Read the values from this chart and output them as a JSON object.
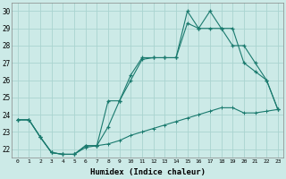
{
  "xlabel": "Humidex (Indice chaleur)",
  "bg_color": "#cceae7",
  "grid_color": "#aad4d0",
  "line_color": "#1a7a6e",
  "x_ticks": [
    0,
    1,
    2,
    3,
    4,
    5,
    6,
    7,
    8,
    9,
    10,
    11,
    12,
    13,
    14,
    15,
    16,
    17,
    18,
    19,
    20,
    21,
    22,
    23
  ],
  "y_ticks": [
    22,
    23,
    24,
    25,
    26,
    27,
    28,
    29,
    30
  ],
  "xlim": [
    -0.5,
    23.5
  ],
  "ylim": [
    21.5,
    30.5
  ],
  "line1_x": [
    0,
    1,
    2,
    3,
    4,
    5,
    6,
    7,
    8,
    9,
    10,
    11,
    12,
    13,
    14,
    15,
    16,
    17,
    18,
    19,
    20,
    21,
    22,
    23
  ],
  "line1_y": [
    23.7,
    23.7,
    22.7,
    21.8,
    21.7,
    21.7,
    22.2,
    22.2,
    23.3,
    24.8,
    26.3,
    27.3,
    27.3,
    27.3,
    27.3,
    30.0,
    29.0,
    30.0,
    29.0,
    29.0,
    27.0,
    26.5,
    26.0,
    24.3
  ],
  "line2_x": [
    0,
    1,
    2,
    3,
    4,
    5,
    6,
    7,
    8,
    9,
    10,
    11,
    12,
    13,
    14,
    15,
    16,
    17,
    18,
    19,
    20,
    21,
    22,
    23
  ],
  "line2_y": [
    23.7,
    23.7,
    22.7,
    21.8,
    21.7,
    21.7,
    22.2,
    22.2,
    24.8,
    24.8,
    26.0,
    27.2,
    27.3,
    27.3,
    27.3,
    29.3,
    29.0,
    29.0,
    29.0,
    28.0,
    28.0,
    27.0,
    26.0,
    24.3
  ],
  "line3_x": [
    0,
    1,
    2,
    3,
    4,
    5,
    6,
    7,
    8,
    9,
    10,
    11,
    12,
    13,
    14,
    15,
    16,
    17,
    18,
    19,
    20,
    21,
    22,
    23
  ],
  "line3_y": [
    23.7,
    23.7,
    22.7,
    21.8,
    21.7,
    21.7,
    22.1,
    22.2,
    22.3,
    22.5,
    22.8,
    23.0,
    23.2,
    23.4,
    23.6,
    23.8,
    24.0,
    24.2,
    24.4,
    24.4,
    24.1,
    24.1,
    24.2,
    24.3
  ]
}
